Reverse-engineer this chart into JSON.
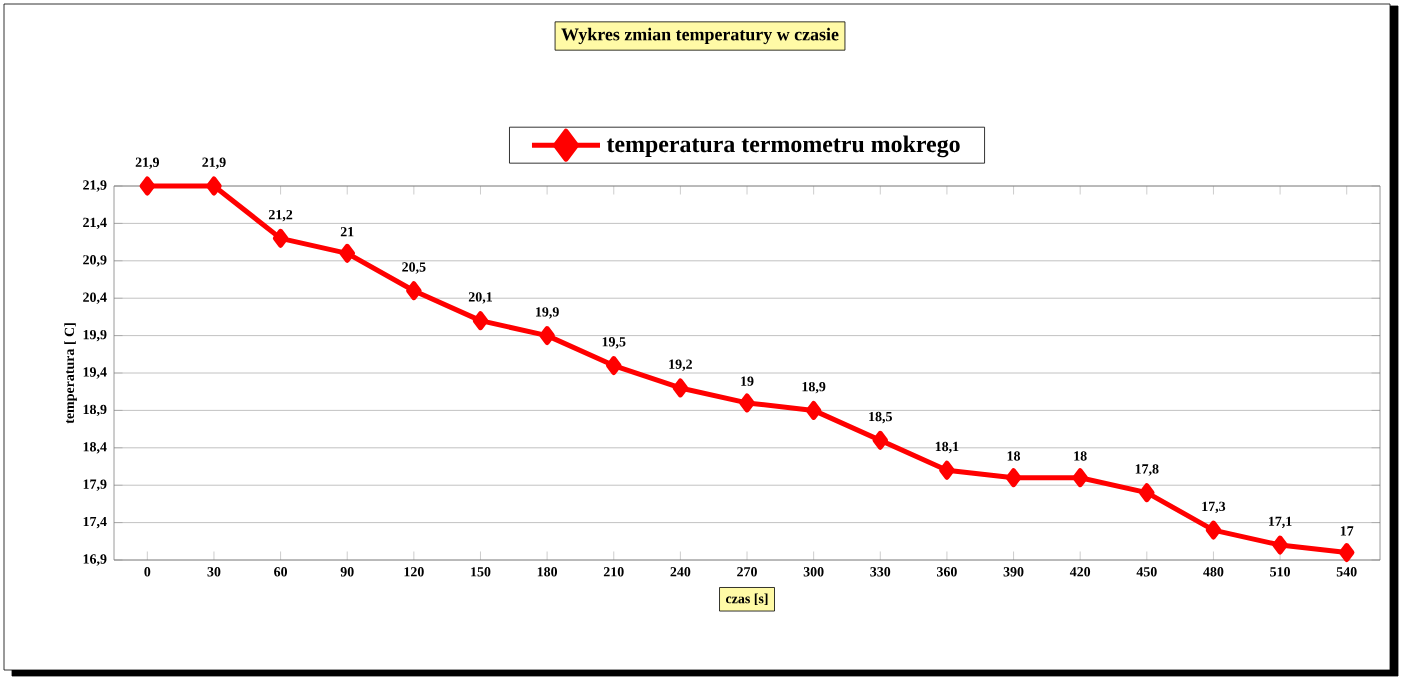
{
  "chart_data": {
    "type": "line",
    "title": "Wykres zmian temperatury w czasie",
    "xlabel": "czas [s]",
    "ylabel": "temperatura [ C]",
    "categories": [
      "0",
      "30",
      "60",
      "90",
      "120",
      "150",
      "180",
      "210",
      "240",
      "270",
      "300",
      "330",
      "360",
      "390",
      "420",
      "450",
      "480",
      "510",
      "540"
    ],
    "series": [
      {
        "name": "temperatura termometru mokrego",
        "color": "#ff0000",
        "values": [
          21.9,
          21.9,
          21.2,
          21,
          20.5,
          20.1,
          19.9,
          19.5,
          19.2,
          19,
          18.9,
          18.5,
          18.1,
          18,
          18,
          17.8,
          17.3,
          17.1,
          17
        ],
        "value_labels": [
          "21,9",
          "21,9",
          "21,2",
          "21",
          "20,5",
          "20,1",
          "19,9",
          "19,5",
          "19,2",
          "19",
          "18,9",
          "18,5",
          "18,1",
          "18",
          "18",
          "17,8",
          "17,3",
          "17,1",
          "17"
        ]
      }
    ],
    "ylim": [
      16.9,
      21.9
    ],
    "yticks": [
      {
        "value": 16.9,
        "label": "16,9"
      },
      {
        "value": 17.4,
        "label": "17,4"
      },
      {
        "value": 17.9,
        "label": "17,9"
      },
      {
        "value": 18.4,
        "label": "18,4"
      },
      {
        "value": 18.9,
        "label": "18,9"
      },
      {
        "value": 19.4,
        "label": "19,4"
      },
      {
        "value": 19.9,
        "label": "19,9"
      },
      {
        "value": 20.4,
        "label": "20,4"
      },
      {
        "value": 20.9,
        "label": "20,9"
      },
      {
        "value": 21.4,
        "label": "21,4"
      },
      {
        "value": 21.9,
        "label": "21,9"
      }
    ],
    "grid": "y",
    "legend": "top",
    "marker": "diamond"
  }
}
